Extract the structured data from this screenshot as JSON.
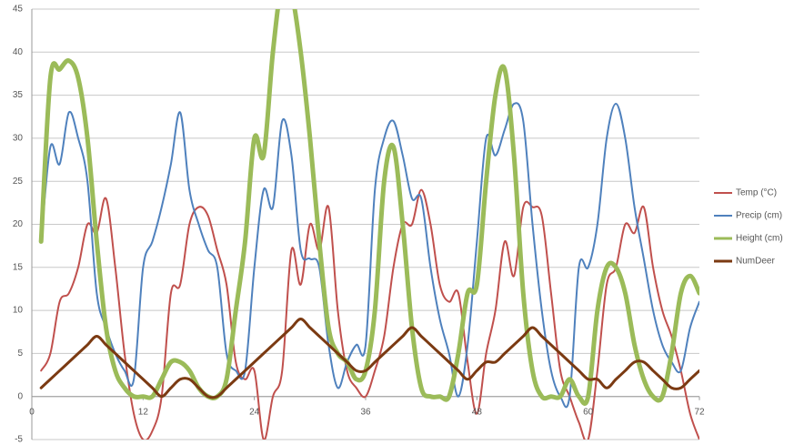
{
  "chart_data": {
    "type": "line",
    "x": [
      1,
      2,
      3,
      4,
      5,
      6,
      7,
      8,
      9,
      10,
      11,
      12,
      13,
      14,
      15,
      16,
      17,
      18,
      19,
      20,
      21,
      22,
      23,
      24,
      25,
      26,
      27,
      28,
      29,
      30,
      31,
      32,
      33,
      34,
      35,
      36,
      37,
      38,
      39,
      40,
      41,
      42,
      43,
      44,
      45,
      46,
      47,
      48,
      49,
      50,
      51,
      52,
      53,
      54,
      55,
      56,
      57,
      58,
      59,
      60,
      61,
      62,
      63,
      64,
      65,
      66,
      67,
      68,
      69,
      70,
      71,
      72
    ],
    "series": [
      {
        "name": "Temp (°C)",
        "color": "#c0504d",
        "width": 2,
        "values": [
          3,
          5,
          11,
          12,
          15,
          20,
          19,
          23,
          15,
          5,
          -2,
          -5,
          -4,
          0,
          12,
          13,
          20,
          22,
          21,
          17,
          13,
          4,
          2,
          3,
          -5,
          0,
          3,
          17,
          13,
          20,
          17,
          22,
          10,
          3,
          1,
          0,
          3,
          7,
          15,
          20,
          20,
          24,
          20,
          13,
          11,
          12,
          4,
          -2,
          5,
          10,
          18,
          14,
          22,
          22,
          21,
          12,
          3,
          0,
          -3,
          -5,
          3,
          13,
          15,
          20,
          19,
          22,
          15,
          10,
          7,
          3,
          -2,
          -5
        ]
      },
      {
        "name": "Precip (cm)",
        "color": "#4f81bd",
        "width": 2,
        "values": [
          18,
          29,
          27,
          33,
          30,
          25,
          12,
          8,
          5,
          3,
          2,
          15,
          18,
          22,
          27,
          33,
          24,
          20,
          17,
          15,
          5,
          3,
          3,
          15,
          24,
          22,
          32,
          28,
          17,
          16,
          15,
          6,
          1,
          4,
          6,
          6,
          24,
          30,
          32,
          28,
          23,
          23,
          15,
          9,
          5,
          0,
          6,
          18,
          30,
          28,
          31,
          34,
          32,
          20,
          10,
          3,
          0,
          0,
          15,
          15,
          20,
          30,
          34,
          30,
          22,
          16,
          10,
          6,
          4,
          3,
          8,
          11
        ]
      },
      {
        "name": "Height (cm)",
        "color": "#9bbb59",
        "width": 5,
        "values": [
          18,
          37,
          38,
          39,
          37,
          30,
          18,
          8,
          3,
          1,
          0,
          0,
          0,
          2,
          4,
          4,
          3,
          1,
          0,
          0,
          2,
          10,
          18,
          30,
          28,
          40,
          48,
          47,
          40,
          30,
          18,
          8,
          5,
          4,
          2,
          3,
          10,
          25,
          29,
          20,
          8,
          1,
          0,
          0,
          0,
          5,
          12,
          13,
          25,
          35,
          38,
          28,
          12,
          3,
          0,
          0,
          0,
          2,
          0,
          0,
          10,
          15,
          15,
          12,
          6,
          2,
          0,
          0,
          5,
          12,
          14,
          12
        ]
      },
      {
        "name": "NumDeer",
        "color": "#7b3a12",
        "width": 3,
        "values": [
          1,
          2,
          3,
          4,
          5,
          6,
          7,
          6,
          5,
          4,
          3,
          2,
          1,
          0,
          1,
          2,
          2,
          1,
          0,
          0,
          1,
          2,
          3,
          4,
          5,
          6,
          7,
          8,
          9,
          8,
          7,
          6,
          5,
          4,
          3,
          3,
          4,
          5,
          6,
          7,
          8,
          7,
          6,
          5,
          4,
          3,
          2,
          3,
          4,
          4,
          5,
          6,
          7,
          8,
          7,
          6,
          5,
          4,
          3,
          2,
          2,
          1,
          2,
          3,
          4,
          4,
          3,
          2,
          1,
          1,
          2,
          3
        ]
      }
    ],
    "xlim": [
      0,
      72
    ],
    "xticks": [
      0,
      12,
      24,
      36,
      48,
      60,
      72
    ],
    "ylim": [
      -5,
      45
    ],
    "yticks": [
      -5,
      0,
      5,
      10,
      15,
      20,
      25,
      30,
      35,
      40,
      45
    ],
    "grid": true,
    "legend": "right"
  }
}
